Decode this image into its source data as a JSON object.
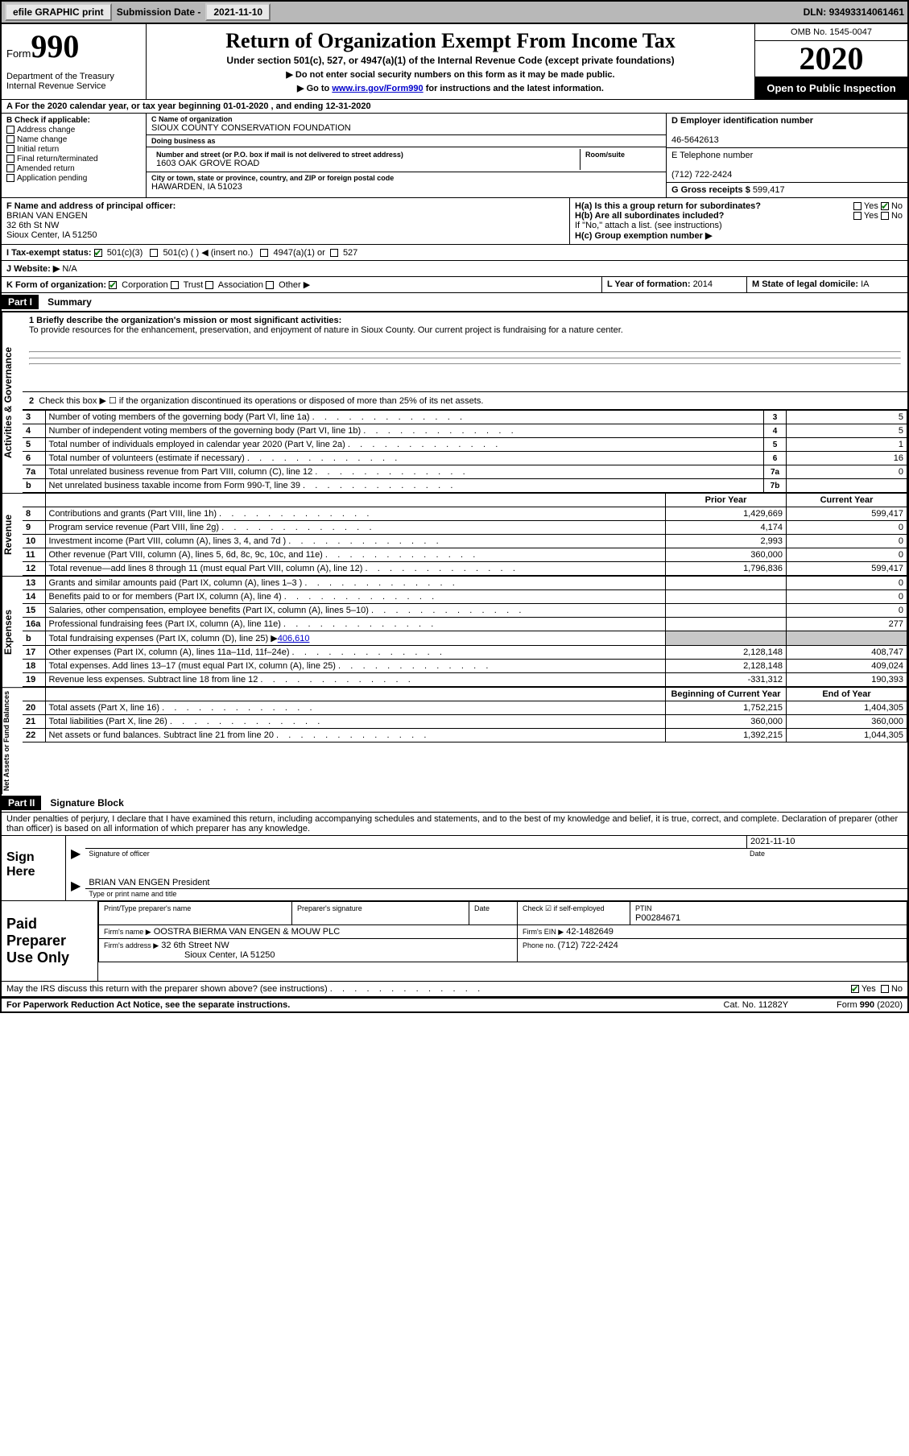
{
  "topbar": {
    "efile": "efile GRAPHIC print",
    "subdate_label": "Submission Date - ",
    "subdate": "2021-11-10",
    "dln_label": "DLN: ",
    "dln": "93493314061461"
  },
  "header": {
    "form_word": "Form",
    "form_num": "990",
    "title": "Return of Organization Exempt From Income Tax",
    "subtitle": "Under section 501(c), 527, or 4947(a)(1) of the Internal Revenue Code (except private foundations)",
    "note1": "▶ Do not enter social security numbers on this form as it may be made public.",
    "note2_pre": "▶ Go to ",
    "note2_link": "www.irs.gov/Form990",
    "note2_post": " for instructions and the latest information.",
    "dept": "Department of the Treasury\nInternal Revenue Service",
    "omb": "OMB No. 1545-0047",
    "year": "2020",
    "open": "Open to Public Inspection"
  },
  "row_a": {
    "text": "A For the 2020 calendar year, or tax year beginning 01-01-2020     , and ending 12-31-2020"
  },
  "col_b": {
    "label": "B Check if applicable:",
    "items": [
      "Address change",
      "Name change",
      "Initial return",
      "Final return/terminated",
      "Amended return",
      "Application pending"
    ]
  },
  "col_c": {
    "name_lbl": "C Name of organization",
    "name": "SIOUX COUNTY CONSERVATION FOUNDATION",
    "dba_lbl": "Doing business as",
    "dba": "",
    "street_lbl": "Number and street (or P.O. box if mail is not delivered to street address)",
    "room_lbl": "Room/suite",
    "street": "1603 OAK GROVE ROAD",
    "city_lbl": "City or town, state or province, country, and ZIP or foreign postal code",
    "city": "HAWARDEN, IA  51023"
  },
  "col_d": {
    "ein_lbl": "D Employer identification number",
    "ein": "46-5642613",
    "tel_lbl": "E Telephone number",
    "tel": "(712) 722-2424",
    "gross_lbl": "G Gross receipts $ ",
    "gross": "599,417"
  },
  "sec_f": {
    "lbl": "F  Name and address of principal officer:",
    "name": "BRIAN VAN ENGEN",
    "addr1": "32 6th St NW",
    "addr2": "Sioux Center, IA  51250"
  },
  "sec_h": {
    "ha": "H(a)  Is this a group return for subordinates?",
    "hb": "H(b)  Are all subordinates included?",
    "hb_note": "If \"No,\" attach a list. (see instructions)",
    "hc": "H(c)  Group exemption number ▶",
    "yes": "Yes",
    "no": "No"
  },
  "row_i": {
    "lbl": "I   Tax-exempt status:",
    "o1": "501(c)(3)",
    "o2": "501(c) (   ) ◀ (insert no.)",
    "o3": "4947(a)(1) or",
    "o4": "527"
  },
  "row_j": {
    "lbl": "J   Website: ▶",
    "val": "N/A"
  },
  "row_k": {
    "lbl": "K Form of organization:",
    "o1": "Corporation",
    "o2": "Trust",
    "o3": "Association",
    "o4": "Other ▶",
    "l_lbl": "L Year of formation: ",
    "l_val": "2014",
    "m_lbl": "M State of legal domicile: ",
    "m_val": "IA"
  },
  "part1": {
    "hdr": "Part I",
    "title": "Summary",
    "mission_lbl": "1   Briefly describe the organization's mission or most significant activities:",
    "mission": "To provide resources for the enhancement, preservation, and enjoyment of nature in Sioux County. Our current project is fundraising for a nature center.",
    "line2": "Check this box ▶ ☐  if the organization discontinued its operations or disposed of more than 25% of its net assets.",
    "side_gov": "Activities & Governance",
    "side_rev": "Revenue",
    "side_exp": "Expenses",
    "side_net": "Net Assets or Fund Balances",
    "gov_lines": [
      {
        "n": "3",
        "d": "Number of voting members of the governing body (Part VI, line 1a)",
        "b": "3",
        "v": "5"
      },
      {
        "n": "4",
        "d": "Number of independent voting members of the governing body (Part VI, line 1b)",
        "b": "4",
        "v": "5"
      },
      {
        "n": "5",
        "d": "Total number of individuals employed in calendar year 2020 (Part V, line 2a)",
        "b": "5",
        "v": "1"
      },
      {
        "n": "6",
        "d": "Total number of volunteers (estimate if necessary)",
        "b": "6",
        "v": "16"
      },
      {
        "n": "7a",
        "d": "Total unrelated business revenue from Part VIII, column (C), line 12",
        "b": "7a",
        "v": "0"
      },
      {
        "n": "b",
        "d": "Net unrelated business taxable income from Form 990-T, line 39",
        "b": "7b",
        "v": ""
      }
    ],
    "cols": {
      "prior": "Prior Year",
      "current": "Current Year",
      "begin": "Beginning of Current Year",
      "end": "End of Year"
    },
    "rev_lines": [
      {
        "n": "8",
        "d": "Contributions and grants (Part VIII, line 1h)",
        "p": "1,429,669",
        "c": "599,417"
      },
      {
        "n": "9",
        "d": "Program service revenue (Part VIII, line 2g)",
        "p": "4,174",
        "c": "0"
      },
      {
        "n": "10",
        "d": "Investment income (Part VIII, column (A), lines 3, 4, and 7d )",
        "p": "2,993",
        "c": "0"
      },
      {
        "n": "11",
        "d": "Other revenue (Part VIII, column (A), lines 5, 6d, 8c, 9c, 10c, and 11e)",
        "p": "360,000",
        "c": "0"
      },
      {
        "n": "12",
        "d": "Total revenue—add lines 8 through 11 (must equal Part VIII, column (A), line 12)",
        "p": "1,796,836",
        "c": "599,417"
      }
    ],
    "exp_lines": [
      {
        "n": "13",
        "d": "Grants and similar amounts paid (Part IX, column (A), lines 1–3 )",
        "p": "",
        "c": "0"
      },
      {
        "n": "14",
        "d": "Benefits paid to or for members (Part IX, column (A), line 4)",
        "p": "",
        "c": "0"
      },
      {
        "n": "15",
        "d": "Salaries, other compensation, employee benefits (Part IX, column (A), lines 5–10)",
        "p": "",
        "c": "0"
      },
      {
        "n": "16a",
        "d": "Professional fundraising fees (Part IX, column (A), line 11e)",
        "p": "",
        "c": "277"
      },
      {
        "n": "b",
        "d": "Total fundraising expenses (Part IX, column (D), line 25) ▶406,610",
        "p": "SHADE",
        "c": "SHADE"
      },
      {
        "n": "17",
        "d": "Other expenses (Part IX, column (A), lines 11a–11d, 11f–24e)",
        "p": "2,128,148",
        "c": "408,747"
      },
      {
        "n": "18",
        "d": "Total expenses. Add lines 13–17 (must equal Part IX, column (A), line 25)",
        "p": "2,128,148",
        "c": "409,024"
      },
      {
        "n": "19",
        "d": "Revenue less expenses. Subtract line 18 from line 12",
        "p": "-331,312",
        "c": "190,393"
      }
    ],
    "net_lines": [
      {
        "n": "20",
        "d": "Total assets (Part X, line 16)",
        "p": "1,752,215",
        "c": "1,404,305"
      },
      {
        "n": "21",
        "d": "Total liabilities (Part X, line 26)",
        "p": "360,000",
        "c": "360,000"
      },
      {
        "n": "22",
        "d": "Net assets or fund balances. Subtract line 21 from line 20",
        "p": "1,392,215",
        "c": "1,044,305"
      }
    ]
  },
  "part2": {
    "hdr": "Part II",
    "title": "Signature Block",
    "decl": "Under penalties of perjury, I declare that I have examined this return, including accompanying schedules and statements, and to the best of my knowledge and belief, it is true, correct, and complete. Declaration of preparer (other than officer) is based on all information of which preparer has any knowledge.",
    "sign_here": "Sign Here",
    "sig_officer": "Signature of officer",
    "sig_date": "Date",
    "sig_date_val": "2021-11-10",
    "sig_name": "BRIAN VAN ENGEN  President",
    "sig_name_lbl": "Type or print name and title",
    "paid": "Paid Preparer Use Only",
    "prep_name_lbl": "Print/Type preparer's name",
    "prep_sig_lbl": "Preparer's signature",
    "date_lbl": "Date",
    "check_lbl": "Check ☑ if self-employed",
    "ptin_lbl": "PTIN",
    "ptin": "P00284671",
    "firm_name_lbl": "Firm's name     ▶",
    "firm_name": "OOSTRA BIERMA VAN ENGEN & MOUW PLC",
    "firm_ein_lbl": "Firm's EIN ▶",
    "firm_ein": "42-1482649",
    "firm_addr_lbl": "Firm's address ▶",
    "firm_addr1": "32 6th Street NW",
    "firm_addr2": "Sioux Center, IA  51250",
    "phone_lbl": "Phone no. ",
    "phone": "(712) 722-2424",
    "discuss": "May the IRS discuss this return with the preparer shown above? (see instructions)",
    "yes": "Yes",
    "no": "No"
  },
  "footer": {
    "l": "For Paperwork Reduction Act Notice, see the separate instructions.",
    "m": "Cat. No. 11282Y",
    "r": "Form 990 (2020)"
  }
}
